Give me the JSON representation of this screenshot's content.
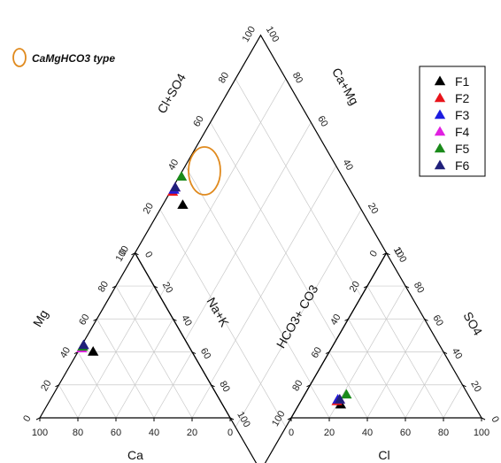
{
  "chart_data": {
    "type": "scatter",
    "subtype": "piper-diagram",
    "annotation": "CaMgHCO3 type",
    "annotation_color": "#E08A1E",
    "ticks": [
      "0",
      "20",
      "40",
      "60",
      "80",
      "100"
    ],
    "axes": {
      "cation_bottom": "Ca",
      "cation_left": "Mg",
      "cation_right": "Na+K",
      "anion_bottom": "Cl",
      "anion_left": "HCO3+ CO3",
      "anion_right": "SO4",
      "diamond_left": "Cl+SO4",
      "diamond_right": "Ca+Mg"
    },
    "series": [
      {
        "name": "F1",
        "color": "#000000",
        "cations": {
          "Ca": 52,
          "Mg": 40,
          "NaK": 8
        },
        "anions": {
          "Cl": 22,
          "SO4": 8,
          "HCO3": 70
        }
      },
      {
        "name": "F2",
        "color": "#E8141B",
        "cations": {
          "Ca": 56,
          "Mg": 43,
          "NaK": 1
        },
        "anions": {
          "Cl": 19,
          "SO4": 10,
          "HCO3": 71
        }
      },
      {
        "name": "F3",
        "color": "#1C1CE0",
        "cations": {
          "Ca": 55,
          "Mg": 44,
          "NaK": 1
        },
        "anions": {
          "Cl": 19,
          "SO4": 11,
          "HCO3": 70
        }
      },
      {
        "name": "F4",
        "color": "#E020E0",
        "cations": {
          "Ca": 57,
          "Mg": 42,
          "NaK": 1
        },
        "anions": {
          "Cl": 20,
          "SO4": 11,
          "HCO3": 69
        }
      },
      {
        "name": "F5",
        "color": "#1A8A1A",
        "cations": {
          "Ca": 56,
          "Mg": 43,
          "NaK": 1
        },
        "anions": {
          "Cl": 22,
          "SO4": 14,
          "HCO3": 64
        }
      },
      {
        "name": "F6",
        "color": "#1F1F7A",
        "cations": {
          "Ca": 55,
          "Mg": 44,
          "NaK": 1
        },
        "anions": {
          "Cl": 20,
          "SO4": 11,
          "HCO3": 69
        }
      }
    ]
  }
}
